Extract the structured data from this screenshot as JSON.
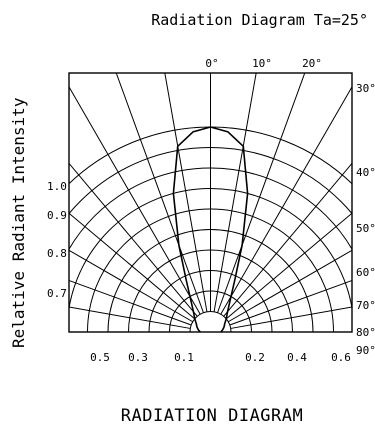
{
  "chart_data": {
    "type": "polar-radiation",
    "title": "Radiation Diagram  Ta=25°",
    "ylabel": "Relative Radiant Intensity",
    "caption": "RADIATION DIAGRAM",
    "top_angle_labels": [
      "0°",
      "10°",
      "20°"
    ],
    "right_angle_labels": [
      "30°",
      "40°",
      "50°",
      "60°",
      "70°",
      "80°",
      "90°"
    ],
    "left_intensity_labels": [
      "1.0",
      "0.9",
      "0.8",
      "0.7"
    ],
    "bottom_intensity_labels": [
      "0.5",
      "0.3",
      "0.1",
      "0.2",
      "0.4",
      "0.6"
    ],
    "angle_grid_deg": [
      0,
      10,
      20,
      30,
      40,
      50,
      60,
      70,
      80,
      90
    ],
    "radius_grid": [
      0.1,
      0.2,
      0.3,
      0.4,
      0.5,
      0.6,
      0.7,
      0.8,
      0.9,
      1.0
    ],
    "series": [
      {
        "angles_deg": [
          0,
          5,
          10,
          15,
          20,
          25,
          30,
          40,
          50,
          60,
          70,
          80,
          90
        ],
        "values": [
          1.0,
          0.98,
          0.92,
          0.7,
          0.45,
          0.28,
          0.2,
          0.13,
          0.1,
          0.08,
          0.07,
          0.06,
          0.05
        ]
      }
    ]
  }
}
